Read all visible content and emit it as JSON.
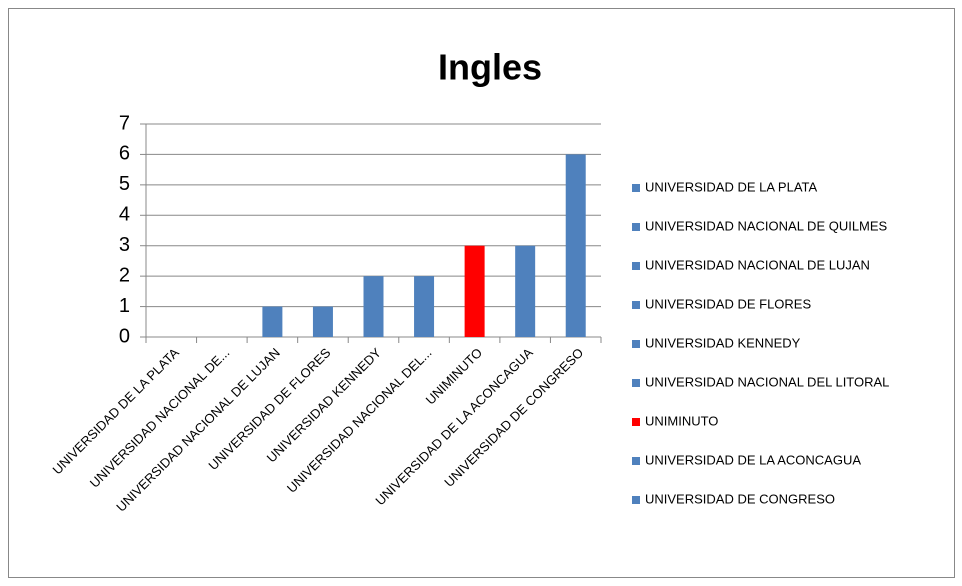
{
  "chart_data": {
    "type": "bar",
    "title": "Ingles",
    "categories": [
      "UNIVERSIDAD DE LA PLATA",
      "UNIVERSIDAD NACIONAL DE...",
      "UNIVERSIDAD NACIONAL DE LUJAN",
      "UNIVERSIDAD DE FLORES",
      "UNIVERSIDAD KENNEDY",
      "UNIVERSIDAD NACIONAL DEL...",
      "UNIMINUTO",
      "UNIVERSIDAD DE LA ACONCAGUA",
      "UNIVERSIDAD DE CONGRESO"
    ],
    "legend_names": [
      "UNIVERSIDAD DE LA PLATA",
      "UNIVERSIDAD NACIONAL DE QUILMES",
      "UNIVERSIDAD NACIONAL DE LUJAN",
      "UNIVERSIDAD DE FLORES",
      "UNIVERSIDAD KENNEDY",
      "UNIVERSIDAD NACIONAL DEL LITORAL",
      "UNIMINUTO",
      "UNIVERSIDAD DE LA ACONCAGUA",
      "UNIVERSIDAD DE CONGRESO"
    ],
    "values": [
      0,
      0,
      1,
      1,
      2,
      2,
      3,
      3,
      6
    ],
    "colors": [
      "#4f81bd",
      "#4f81bd",
      "#4f81bd",
      "#4f81bd",
      "#4f81bd",
      "#4f81bd",
      "#ff0000",
      "#4f81bd",
      "#4f81bd"
    ],
    "ylim": [
      0,
      7
    ],
    "yticks": [
      0,
      1,
      2,
      3,
      4,
      5,
      6,
      7
    ],
    "grid": true,
    "legend": "right"
  }
}
